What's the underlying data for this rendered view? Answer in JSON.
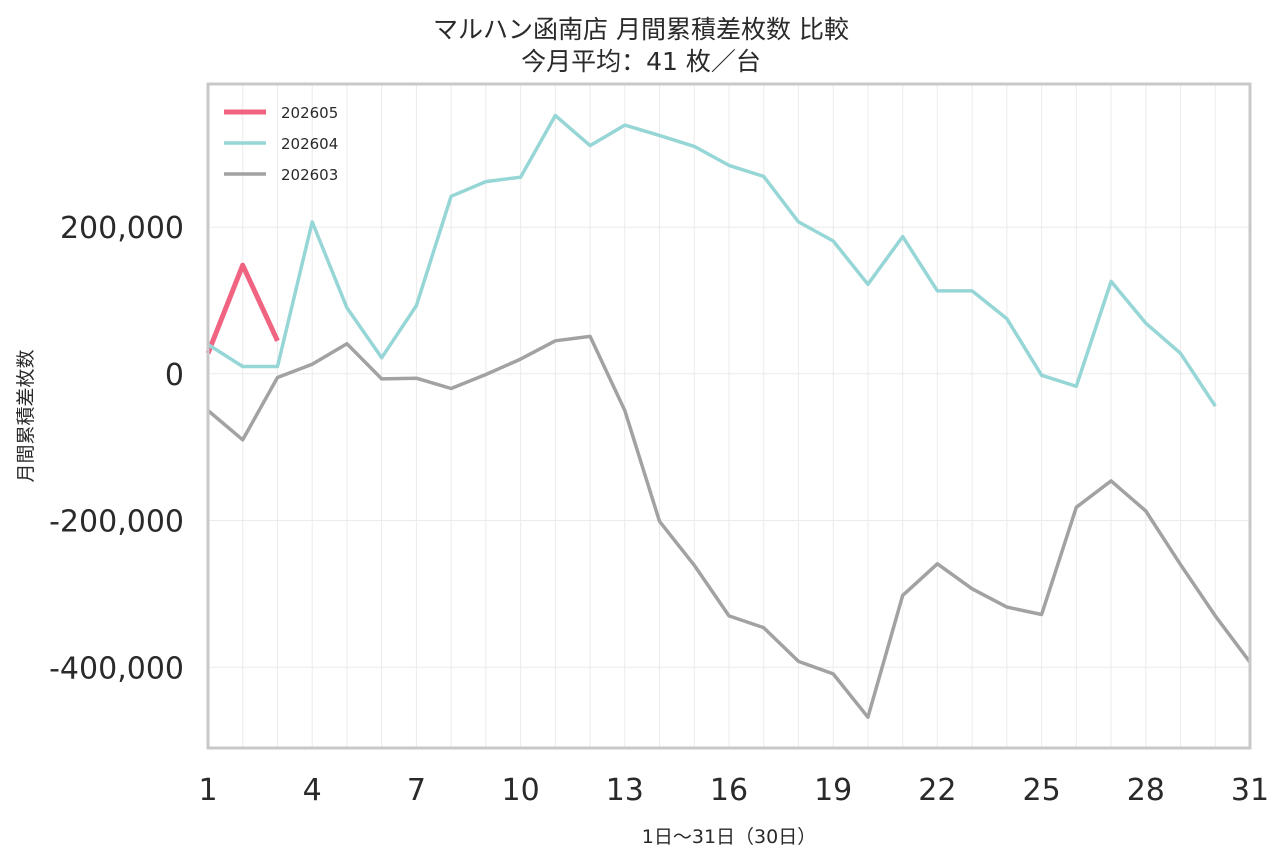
{
  "chart_data": {
    "type": "line",
    "title": "マルハン函南店 月間累積差枚数 比較",
    "subtitle": "今月平均：41 枚／台",
    "xlabel": "1日〜31日（30日）",
    "ylabel": "月間累積差枚数",
    "xlim": [
      1,
      31
    ],
    "ylim": [
      -510000,
      395000
    ],
    "x_ticks": [
      1,
      4,
      7,
      10,
      13,
      16,
      19,
      22,
      25,
      28,
      31
    ],
    "y_ticks": [
      200000,
      0,
      -200000,
      -400000
    ],
    "y_tick_labels": [
      "200,000",
      "0",
      "-200,000",
      "-400,000"
    ],
    "grid": true,
    "legend_position": "top-left",
    "series": [
      {
        "name": "202605",
        "color": "#f06482",
        "x": [
          1,
          2,
          3
        ],
        "values": [
          28000,
          148000,
          45000
        ]
      },
      {
        "name": "202604",
        "color": "#97d6d6",
        "x": [
          1,
          2,
          3,
          4,
          5,
          6,
          7,
          8,
          9,
          10,
          11,
          12,
          13,
          14,
          15,
          16,
          17,
          18,
          19,
          20,
          21,
          22,
          23,
          24,
          25,
          26,
          27,
          28,
          29,
          30
        ],
        "values": [
          40000,
          10000,
          10000,
          207000,
          90000,
          22000,
          93000,
          242000,
          262000,
          268000,
          352000,
          311000,
          339000,
          325000,
          310000,
          284000,
          269000,
          207000,
          181000,
          122000,
          187000,
          113000,
          113000,
          75000,
          -2000,
          -17000,
          126000,
          69000,
          28000,
          -44000
        ]
      },
      {
        "name": "202603",
        "color": "#a2a2a2",
        "x": [
          1,
          2,
          3,
          4,
          5,
          6,
          7,
          8,
          9,
          10,
          11,
          12,
          13,
          14,
          15,
          16,
          17,
          18,
          19,
          20,
          21,
          22,
          23,
          24,
          25,
          26,
          27,
          28,
          29,
          30,
          31
        ],
        "values": [
          -50000,
          -90000,
          -5000,
          13000,
          41000,
          -7000,
          -6000,
          -20000,
          -1000,
          20000,
          45000,
          51000,
          -50000,
          -201000,
          -261000,
          -330000,
          -346000,
          -392000,
          -409000,
          -468000,
          -302000,
          -259000,
          -293000,
          -318000,
          -328000,
          -182000,
          -146000,
          -187000,
          -260000,
          -330000,
          -393000
        ]
      }
    ]
  }
}
